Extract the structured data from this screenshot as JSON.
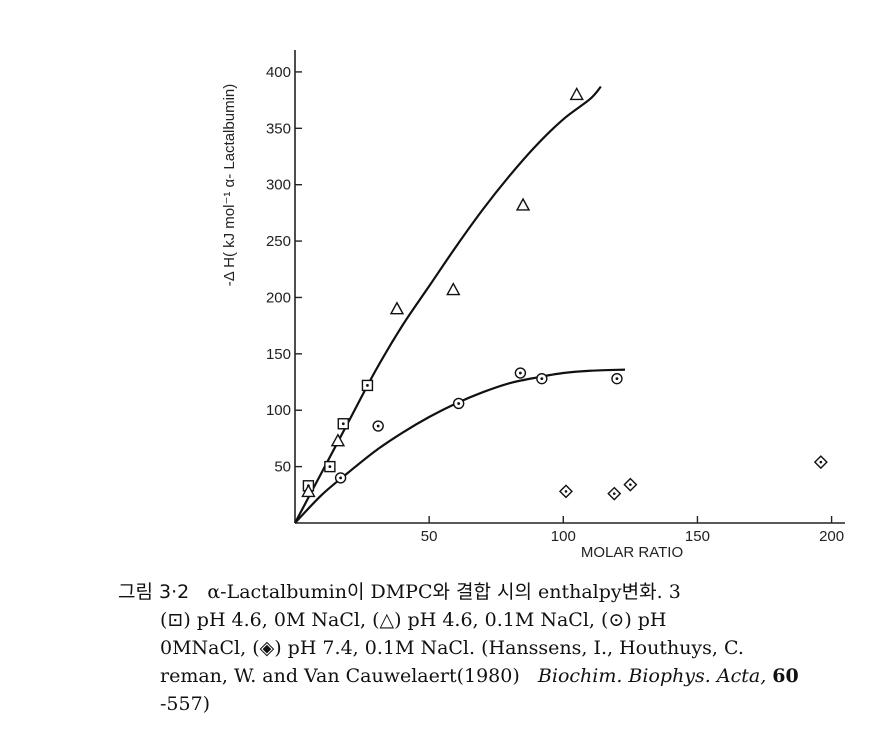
{
  "chart_data": {
    "type": "scatter",
    "xlabel": "MOLAR RATIO",
    "ylabel": "-Δ H( kJ mol⁻¹ α- Lactalbumin)",
    "xlim": [
      0,
      205
    ],
    "ylim": [
      0,
      415
    ],
    "x_ticks": [
      50,
      100,
      150,
      200
    ],
    "y_ticks": [
      50,
      100,
      150,
      200,
      250,
      300,
      350,
      400
    ],
    "x_tick_labels": [
      "50",
      "100",
      "150",
      "200"
    ],
    "y_tick_labels": [
      "50",
      "100",
      "150",
      "200",
      "250",
      "300",
      "350",
      "400"
    ],
    "grid": false,
    "legend": "none",
    "series": [
      {
        "marker": "square-dot",
        "points": [
          [
            5,
            33
          ],
          [
            13,
            50
          ],
          [
            18,
            88
          ],
          [
            27,
            122
          ]
        ]
      },
      {
        "marker": "triangle",
        "points": [
          [
            5,
            28
          ],
          [
            16,
            73
          ],
          [
            38,
            190
          ],
          [
            59,
            207
          ],
          [
            85,
            282
          ],
          [
            105,
            380
          ]
        ]
      },
      {
        "marker": "circle-dot",
        "points": [
          [
            17,
            40
          ],
          [
            31,
            86
          ],
          [
            61,
            106
          ],
          [
            84,
            133
          ],
          [
            92,
            128
          ],
          [
            120,
            128
          ]
        ]
      },
      {
        "marker": "diamond-dot",
        "points": [
          [
            101,
            28
          ],
          [
            119,
            26
          ],
          [
            125,
            34
          ],
          [
            196,
            54
          ]
        ]
      }
    ],
    "curves": [
      {
        "name_hidden": true,
        "points": [
          [
            0,
            0
          ],
          [
            10,
            45
          ],
          [
            20,
            90
          ],
          [
            30,
            135
          ],
          [
            40,
            175
          ],
          [
            50,
            210
          ],
          [
            60,
            245
          ],
          [
            70,
            278
          ],
          [
            80,
            308
          ],
          [
            90,
            335
          ],
          [
            100,
            358
          ],
          [
            110,
            376
          ],
          [
            114,
            387
          ]
        ]
      },
      {
        "name_hidden": true,
        "points": [
          [
            0,
            0
          ],
          [
            10,
            25
          ],
          [
            20,
            45
          ],
          [
            30,
            64
          ],
          [
            40,
            80
          ],
          [
            50,
            94
          ],
          [
            60,
            106
          ],
          [
            70,
            116
          ],
          [
            80,
            124
          ],
          [
            90,
            129
          ],
          [
            100,
            133
          ],
          [
            110,
            135
          ],
          [
            123,
            136
          ]
        ]
      }
    ]
  },
  "caption": {
    "fig_label": "그림 3·2",
    "line1": "α-Lactalbumin이 DMPC와 결합 시의 enthalpy변화. 3",
    "line2": "(⊡) pH 4.6, 0M NaCl, (△) pH 4.6, 0.1M NaCl, (⊙) pH",
    "line3": "0MNaCl, (◈) pH 7.4, 0.1M NaCl. (Hanssens, I., Houthuys, C.",
    "line4_a": "reman, W. and Van Cauwelaert(1980)",
    "line4_b": "Biochim. Biophys. Acta,",
    "line4_c": "60",
    "line5": "-557)"
  }
}
